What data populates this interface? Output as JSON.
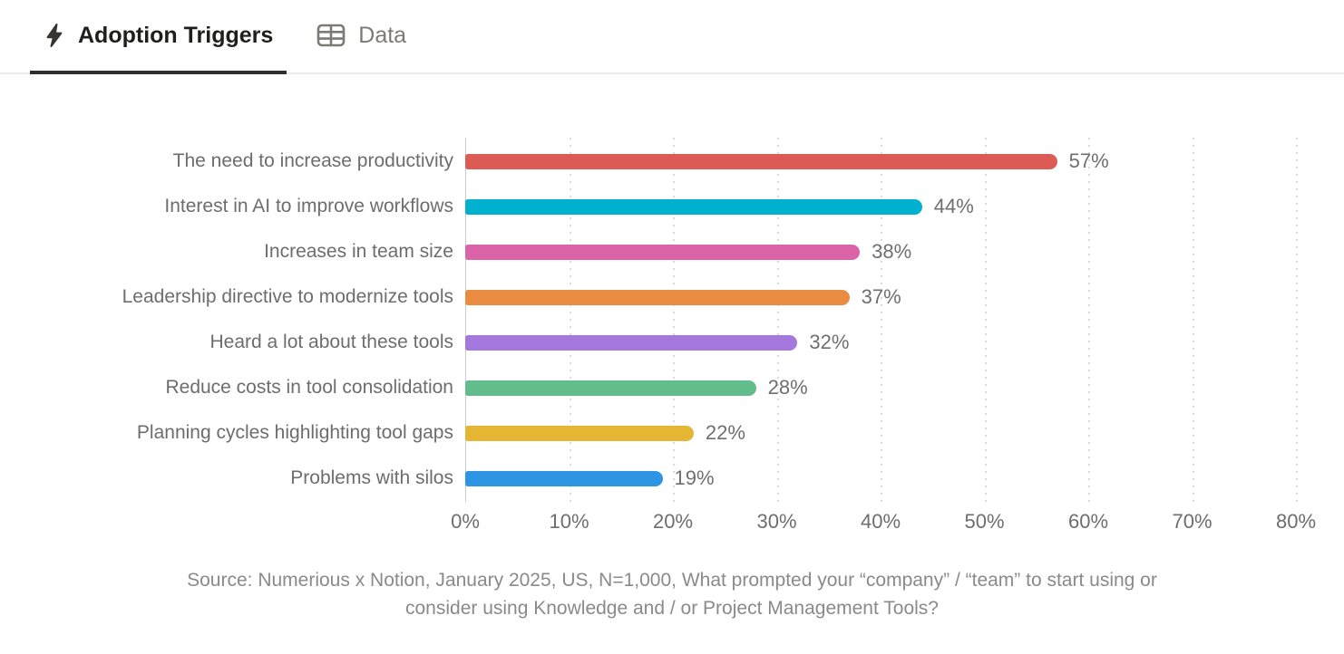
{
  "tabs": [
    {
      "label": "Adoption Triggers",
      "icon": "lightning-bolt-icon",
      "active": true
    },
    {
      "label": "Data",
      "icon": "table-icon",
      "active": false
    }
  ],
  "colors": {
    "active_tab_text": "#1f1f1e",
    "inactive_tab_text": "#7d7a75",
    "active_tab_underline": "#2f2f2d",
    "gridline": "#dadada",
    "axis_line": "#cccccc",
    "label_text": "#6d6d6d",
    "caption_text": "#8a8a8a"
  },
  "chart_data": {
    "type": "bar",
    "orientation": "horizontal",
    "title": "",
    "categories": [
      "The need to increase productivity",
      "Interest in AI to improve workflows",
      "Increases in team size",
      "Leadership directive to modernize tools",
      "Heard a lot about these tools",
      "Reduce costs in tool consolidation",
      "Planning cycles highlighting tool gaps",
      "Problems with silos"
    ],
    "values": [
      57,
      44,
      38,
      37,
      32,
      28,
      22,
      19
    ],
    "value_labels": [
      "57%",
      "44%",
      "38%",
      "37%",
      "32%",
      "28%",
      "22%",
      "19%"
    ],
    "bar_colors": [
      "#dc5b55",
      "#00b1cf",
      "#db63a8",
      "#e98b41",
      "#a478dc",
      "#61bd8b",
      "#e5b534",
      "#2e95e5"
    ],
    "x_ticks": [
      "0%",
      "10%",
      "20%",
      "30%",
      "40%",
      "50%",
      "60%",
      "70%",
      "80%"
    ],
    "xlim": [
      0,
      80
    ],
    "grid": "dotted-vertical",
    "legend": "none"
  },
  "caption": {
    "lines": [
      "Source: Numerious x Notion, January 2025, US, N=1,000, What prompted your “company” / “team” to start using or",
      "consider using Knowledge and / or Project Management Tools?"
    ]
  }
}
